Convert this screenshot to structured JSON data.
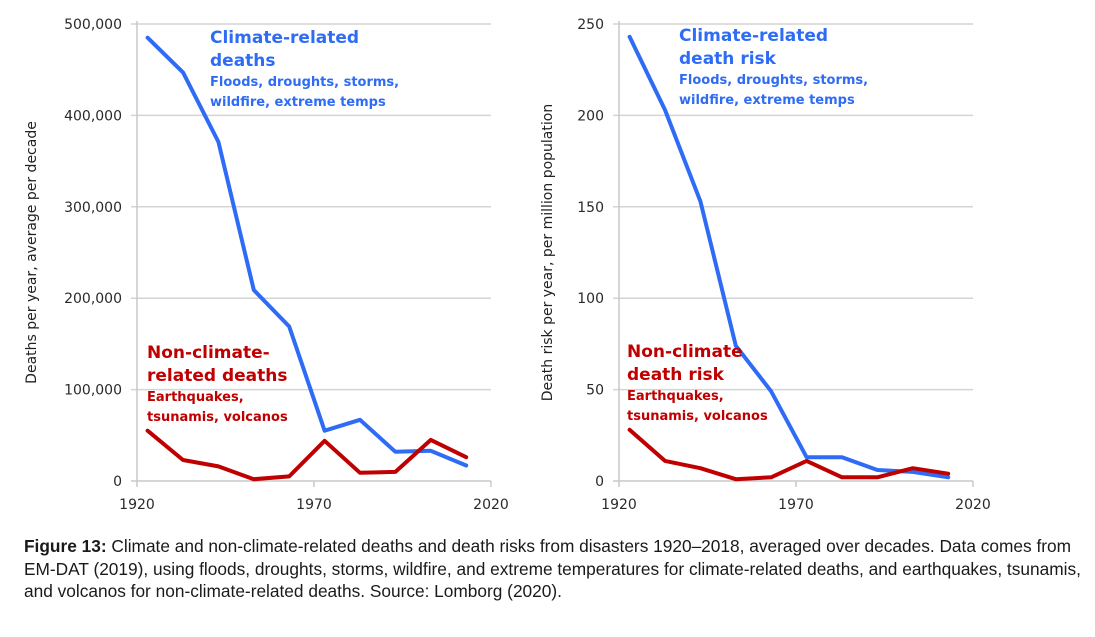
{
  "colors": {
    "climate": "#2f6cf5",
    "non_climate": "#c00000",
    "grid": "#d4d4d4",
    "axis": "#c8c8c8"
  },
  "chart_data": [
    {
      "type": "line",
      "title": "",
      "xlabel": "",
      "ylabel": "Deaths per year, average per decade",
      "xlim": [
        1920,
        2020
      ],
      "ylim": [
        0,
        500000
      ],
      "x_ticks": [
        1920,
        1970,
        2020
      ],
      "y_ticks": [
        0,
        100000,
        200000,
        300000,
        400000,
        500000
      ],
      "y_tick_labels": [
        "0",
        "100,000",
        "200,000",
        "300,000",
        "400,000",
        "500,000"
      ],
      "grid": true,
      "x": [
        1923,
        1933,
        1943,
        1953,
        1963,
        1973,
        1983,
        1993,
        2003,
        2013
      ],
      "series": [
        {
          "name": "Climate-related deaths",
          "color_key": "climate",
          "values": [
            485000,
            447000,
            371000,
            209000,
            169000,
            55000,
            67000,
            32000,
            33000,
            17000
          ]
        },
        {
          "name": "Non-climate-related deaths",
          "color_key": "non_climate",
          "values": [
            55000,
            23000,
            16000,
            2000,
            5000,
            44000,
            9000,
            10000,
            45000,
            26000
          ]
        }
      ],
      "annotations": [
        {
          "series": 0,
          "title_lines": [
            "Climate-related",
            "deaths"
          ],
          "sub_lines": [
            "Floods, droughts, storms,",
            "wildfire, extreme temps"
          ]
        },
        {
          "series": 1,
          "title_lines": [
            "Non-climate-",
            "related deaths"
          ],
          "sub_lines": [
            "Earthquakes,",
            "tsunamis, volcanos"
          ]
        }
      ]
    },
    {
      "type": "line",
      "title": "",
      "xlabel": "",
      "ylabel": "Death risk per year, per million population",
      "xlim": [
        1920,
        2020
      ],
      "ylim": [
        0,
        250
      ],
      "x_ticks": [
        1920,
        1970,
        2020
      ],
      "y_ticks": [
        0,
        50,
        100,
        150,
        200,
        250
      ],
      "y_tick_labels": [
        "0",
        "50",
        "100",
        "150",
        "200",
        "250"
      ],
      "grid": true,
      "x": [
        1923,
        1933,
        1943,
        1953,
        1963,
        1973,
        1983,
        1993,
        2003,
        2013
      ],
      "series": [
        {
          "name": "Climate-related death risk",
          "color_key": "climate",
          "values": [
            243,
            203,
            153,
            74,
            49,
            13,
            13,
            6,
            5,
            2
          ]
        },
        {
          "name": "Non-climate death risk",
          "color_key": "non_climate",
          "values": [
            28,
            11,
            7,
            1,
            2,
            11,
            2,
            2,
            7,
            4
          ]
        }
      ],
      "annotations": [
        {
          "series": 0,
          "title_lines": [
            "Climate-related",
            "death risk"
          ],
          "sub_lines": [
            "Floods, droughts, storms,",
            "wildfire, extreme temps"
          ]
        },
        {
          "series": 1,
          "title_lines": [
            "Non-climate",
            "death risk"
          ],
          "sub_lines": [
            "Earthquakes,",
            "tsunamis, volcanos"
          ]
        }
      ]
    }
  ],
  "caption": {
    "label": "Figure 13:",
    "text": " Climate and non-climate-related deaths and death risks from disasters 1920–2018, averaged over decades. Data comes from EM-DAT (2019), using floods, droughts, storms, wildfire, and extreme temperatures for climate-related deaths, and earthquakes, tsunamis, and volcanos for non-climate-related deaths. Source: Lomborg (2020)."
  }
}
